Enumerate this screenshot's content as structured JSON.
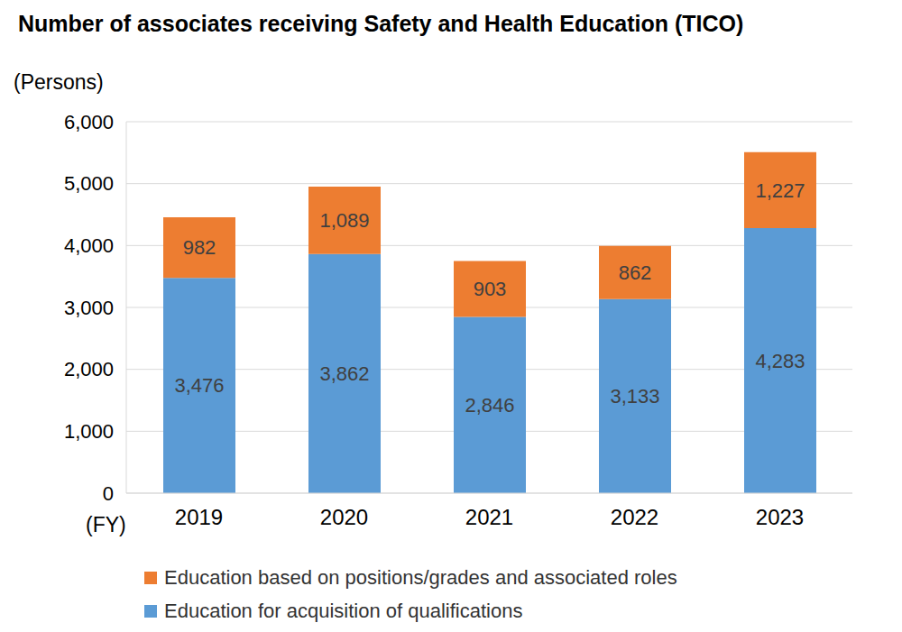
{
  "chart_data": {
    "type": "bar",
    "title": "Number of associates receiving Safety and Health Education (TICO)",
    "y_label": "(Persons)",
    "x_label": "(FY)",
    "categories": [
      "2019",
      "2020",
      "2021",
      "2022",
      "2023"
    ],
    "series": [
      {
        "name": "Education for acquisition of qualifications",
        "color": "#5b9bd5",
        "values": [
          3476,
          3862,
          2846,
          3133,
          4283
        ],
        "value_labels": [
          "3,476",
          "3,862",
          "2,846",
          "3,133",
          "4,283"
        ]
      },
      {
        "name": "Education based on positions/grades and associated roles",
        "color": "#ed7d31",
        "values": [
          982,
          1089,
          903,
          862,
          1227
        ],
        "value_labels": [
          "982",
          "1,089",
          "903",
          "862",
          "1,227"
        ]
      }
    ],
    "ylim": [
      0,
      6000
    ],
    "yticks": [
      0,
      {
        "value": 1000,
        "label": "1,000"
      },
      {
        "value": 2000,
        "label": "2,000"
      },
      {
        "value": 3000,
        "label": "3,000"
      },
      {
        "value": 4000,
        "label": "4,000"
      },
      {
        "value": 5000,
        "label": "5,000"
      },
      {
        "value": 6000,
        "label": "6,000"
      }
    ],
    "grid": true,
    "stacked": true,
    "data_labels": true,
    "legend": "bottom"
  }
}
